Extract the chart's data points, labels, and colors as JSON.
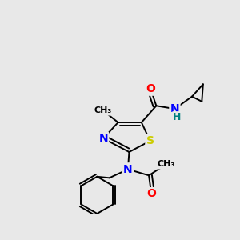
{
  "bg_color": "#e8e8e8",
  "bond_color": "#000000",
  "atom_colors": {
    "O": "#ff0000",
    "N": "#0000ff",
    "S": "#cccc00",
    "H": "#008080",
    "C": "#000000"
  },
  "font_size": 9,
  "line_width": 1.4
}
